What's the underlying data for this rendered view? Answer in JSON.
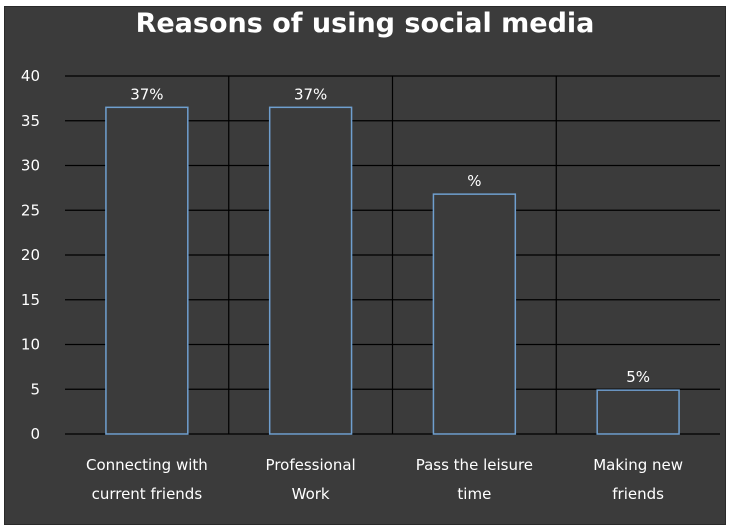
{
  "chart_data": {
    "type": "bar",
    "title": "Reasons of using social media",
    "categories": [
      [
        "Connecting with",
        "current friends"
      ],
      [
        "Professional",
        "Work"
      ],
      [
        "Pass the leisure",
        "time"
      ],
      [
        "Making new",
        "friends"
      ]
    ],
    "values": [
      36.5,
      36.5,
      26.8,
      4.9
    ],
    "data_labels": [
      "37%",
      "37%",
      "%",
      "5%"
    ],
    "ylim": [
      0,
      40
    ],
    "yticks": [
      0,
      5,
      10,
      15,
      20,
      25,
      30,
      35,
      40
    ],
    "grid": true,
    "legend": "none",
    "colors": {
      "background": "#3b3b3b",
      "bar_fill": "#3b3b3b",
      "bar_outline": "#6f9fcf",
      "grid": "#000000",
      "text": "#ffffff"
    }
  }
}
